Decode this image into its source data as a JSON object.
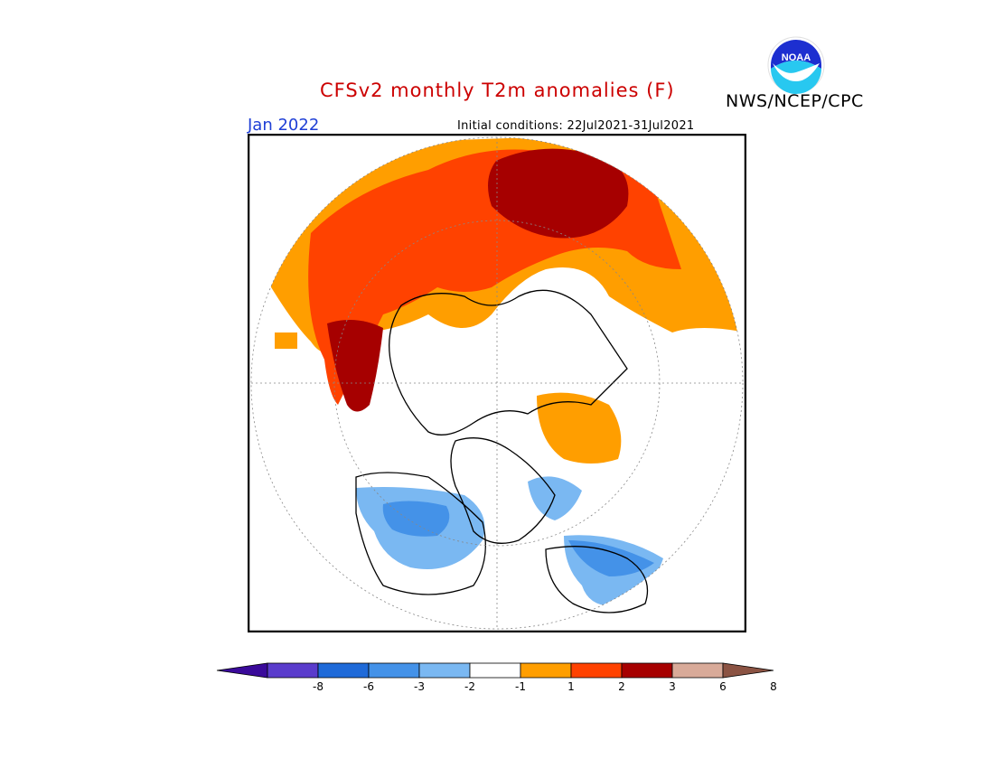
{
  "header": {
    "title": "CFSv2 monthly T2m anomalies (F)",
    "agency": "NWS/NCEP/CPC",
    "logo_text": "NOAA",
    "target_month": "Jan 2022",
    "initial_conditions": "Initial conditions: 22Jul2021-31Jul2021"
  },
  "colorbar": {
    "labels": [
      "-8",
      "-6",
      "-3",
      "-2",
      "-1",
      "1",
      "2",
      "3",
      "6",
      "8"
    ],
    "colors": [
      "#3a0a9a",
      "#5a3ccc",
      "#1f6ad8",
      "#4492e8",
      "#7ab8f2",
      "#ffffff",
      "#ff9e00",
      "#ff4200",
      "#a60000",
      "#d8aa99",
      "#8b5343"
    ]
  },
  "colors": {
    "title": "#cc0000",
    "month": "#1f3fd6",
    "warm1": "#ff9e00",
    "warm2": "#ff4200",
    "warm3": "#a60000",
    "cool1": "#7ab8f2",
    "cool2": "#4492e8",
    "cool3": "#1f6ad8"
  }
}
